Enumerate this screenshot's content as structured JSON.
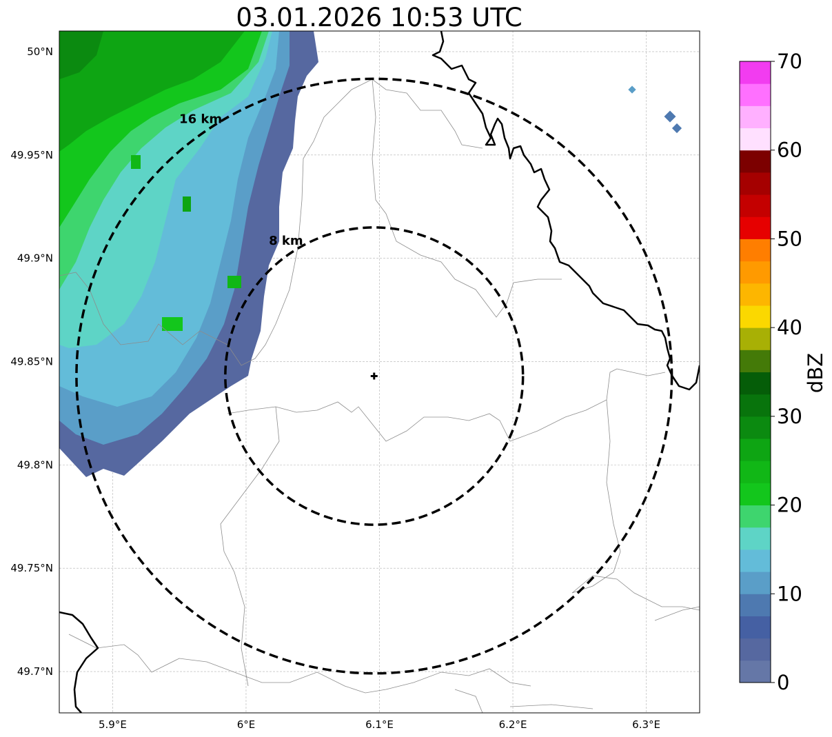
{
  "title": "03.01.2026 10:53 UTC",
  "map": {
    "lon_range": [
      5.86,
      6.34
    ],
    "lat_range": [
      49.68,
      50.01
    ],
    "x_ticks": [
      {
        "lon": 5.9,
        "label": "5.9°E"
      },
      {
        "lon": 6.0,
        "label": "6°E"
      },
      {
        "lon": 6.1,
        "label": "6.1°E"
      },
      {
        "lon": 6.2,
        "label": "6.2°E"
      },
      {
        "lon": 6.3,
        "label": "6.3°E"
      }
    ],
    "y_ticks": [
      {
        "lat": 50.0,
        "label": "50°N"
      },
      {
        "lat": 49.95,
        "label": "49.95°N"
      },
      {
        "lat": 49.9,
        "label": "49.9°N"
      },
      {
        "lat": 49.85,
        "label": "49.85°N"
      },
      {
        "lat": 49.8,
        "label": "49.8°N"
      },
      {
        "lat": 49.75,
        "label": "49.75°N"
      },
      {
        "lat": 49.7,
        "label": "49.7°N"
      }
    ],
    "radar_site": {
      "lon": 6.096,
      "lat": 49.843
    },
    "range_rings": [
      {
        "radius_km": 8,
        "label": "8 km"
      },
      {
        "radius_km": 16,
        "label": "16 km"
      }
    ]
  },
  "colorbar": {
    "label": "dBZ",
    "min": 0,
    "max": 70,
    "ticks": [
      {
        "value": 0,
        "label": "0"
      },
      {
        "value": 10,
        "label": "10"
      },
      {
        "value": 20,
        "label": "20"
      },
      {
        "value": 30,
        "label": "30"
      },
      {
        "value": 40,
        "label": "40"
      },
      {
        "value": 50,
        "label": "50"
      },
      {
        "value": 60,
        "label": "60"
      },
      {
        "value": 70,
        "label": "70"
      }
    ],
    "colors": [
      "#6577a7",
      "#5668a0",
      "#4560a3",
      "#4e79b0",
      "#5a9ec8",
      "#63bcd9",
      "#5ed4c6",
      "#3ed56e",
      "#13c61c",
      "#11b716",
      "#0ea513",
      "#0b8a10",
      "#08740c",
      "#055d08",
      "#447a08",
      "#a8b005",
      "#fbd800",
      "#fdb600",
      "#ff9a00",
      "#ff7e00",
      "#e60000",
      "#c40000",
      "#a50000",
      "#7c0000",
      "#ffe0ff",
      "#ffb0ff",
      "#ff70ff",
      "#f23cf0"
    ]
  }
}
